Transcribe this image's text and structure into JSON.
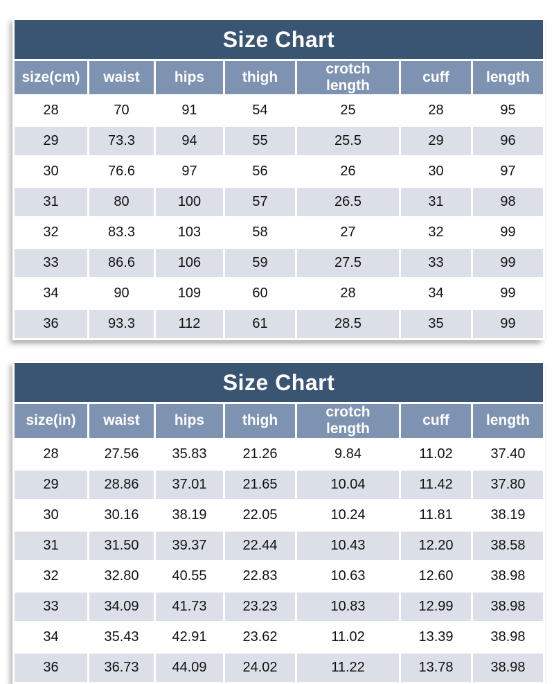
{
  "colors": {
    "title_bar_bg": "#3a5571",
    "header_bg": "#7e93b1",
    "row_bg": "#ffffff",
    "row_alt_bg": "#dbe0e8",
    "title_text": "#ffffff",
    "header_text": "#ffffff",
    "cell_text": "#111111"
  },
  "chart_data": [
    {
      "type": "table",
      "title": "Size Chart",
      "unit": "cm",
      "columns": [
        "size(cm)",
        "waist",
        "hips",
        "thigh",
        "crotch length",
        "cuff",
        "length"
      ],
      "rows": [
        [
          "28",
          "70",
          "91",
          "54",
          "25",
          "28",
          "95"
        ],
        [
          "29",
          "73.3",
          "94",
          "55",
          "25.5",
          "29",
          "96"
        ],
        [
          "30",
          "76.6",
          "97",
          "56",
          "26",
          "30",
          "97"
        ],
        [
          "31",
          "80",
          "100",
          "57",
          "26.5",
          "31",
          "98"
        ],
        [
          "32",
          "83.3",
          "103",
          "58",
          "27",
          "32",
          "99"
        ],
        [
          "33",
          "86.6",
          "106",
          "59",
          "27.5",
          "33",
          "99"
        ],
        [
          "34",
          "90",
          "109",
          "60",
          "28",
          "34",
          "99"
        ],
        [
          "36",
          "93.3",
          "112",
          "61",
          "28.5",
          "35",
          "99"
        ]
      ]
    },
    {
      "type": "table",
      "title": "Size Chart",
      "unit": "in",
      "columns": [
        "size(in)",
        "waist",
        "hips",
        "thigh",
        "crotch length",
        "cuff",
        "length"
      ],
      "rows": [
        [
          "28",
          "27.56",
          "35.83",
          "21.26",
          "9.84",
          "11.02",
          "37.40"
        ],
        [
          "29",
          "28.86",
          "37.01",
          "21.65",
          "10.04",
          "11.42",
          "37.80"
        ],
        [
          "30",
          "30.16",
          "38.19",
          "22.05",
          "10.24",
          "11.81",
          "38.19"
        ],
        [
          "31",
          "31.50",
          "39.37",
          "22.44",
          "10.43",
          "12.20",
          "38.58"
        ],
        [
          "32",
          "32.80",
          "40.55",
          "22.83",
          "10.63",
          "12.60",
          "38.98"
        ],
        [
          "33",
          "34.09",
          "41.73",
          "23.23",
          "10.83",
          "12.99",
          "38.98"
        ],
        [
          "34",
          "35.43",
          "42.91",
          "23.62",
          "11.02",
          "13.39",
          "38.98"
        ],
        [
          "36",
          "36.73",
          "44.09",
          "24.02",
          "11.22",
          "13.78",
          "38.98"
        ]
      ]
    }
  ]
}
